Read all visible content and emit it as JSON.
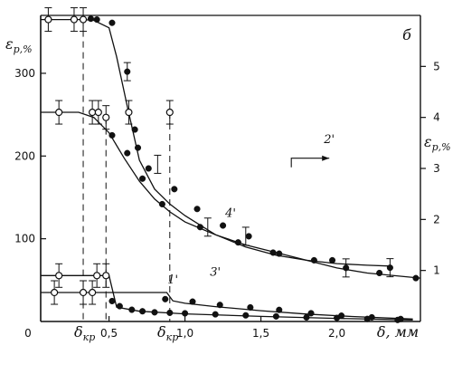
{
  "chart_data": {
    "type": "line",
    "panel_label": "б",
    "ylabel_left": "ε_p,%",
    "ylabel_right": "ε_p,%",
    "xlabel": "δ, мм",
    "delta_kr_label": "δ_кр",
    "x_ticks": [
      "0,5",
      "1,0",
      "1,5",
      "2,0"
    ],
    "y_left_ticks": [
      "100",
      "200",
      "300"
    ],
    "y_right_ticks": [
      "1",
      "2",
      "3",
      "4",
      "5"
    ],
    "origin_label": "0",
    "xlim": [
      0.05,
      2.55
    ],
    "ylim_left": [
      0,
      370
    ],
    "ylim_right": [
      0,
      6.0
    ],
    "series": [
      {
        "name": "1'",
        "axis": "right",
        "line": [
          [
            0.05,
            0.9
          ],
          [
            0.5,
            0.9
          ],
          [
            0.55,
            0.28
          ],
          [
            0.7,
            0.2
          ],
          [
            1.0,
            0.15
          ],
          [
            1.5,
            0.1
          ],
          [
            2.0,
            0.06
          ],
          [
            2.5,
            0.03
          ]
        ],
        "open": [
          [
            0.17,
            0.9
          ],
          [
            0.42,
            0.9
          ],
          [
            0.48,
            0.9
          ]
        ],
        "filled": [
          [
            0.52,
            0.4
          ],
          [
            0.57,
            0.3
          ],
          [
            0.65,
            0.23
          ],
          [
            0.72,
            0.2
          ],
          [
            0.8,
            0.18
          ],
          [
            0.9,
            0.17
          ],
          [
            1.0,
            0.16
          ],
          [
            1.2,
            0.14
          ],
          [
            1.4,
            0.12
          ],
          [
            1.6,
            0.1
          ],
          [
            1.8,
            0.08
          ],
          [
            2.0,
            0.07
          ],
          [
            2.2,
            0.05
          ],
          [
            2.4,
            0.03
          ]
        ]
      },
      {
        "name": "2'",
        "axis": "left",
        "line": [
          [
            0.05,
            365
          ],
          [
            0.33,
            365
          ],
          [
            0.4,
            364
          ],
          [
            0.5,
            355
          ],
          [
            0.55,
            320
          ],
          [
            0.62,
            260
          ],
          [
            0.7,
            195
          ],
          [
            0.8,
            160
          ],
          [
            0.9,
            142
          ],
          [
            1.0,
            128
          ],
          [
            1.2,
            105
          ],
          [
            1.4,
            90
          ],
          [
            1.6,
            80
          ],
          [
            1.8,
            74
          ],
          [
            2.0,
            70
          ],
          [
            2.2,
            68
          ],
          [
            2.35,
            67
          ]
        ],
        "open": [
          [
            0.1,
            365
          ],
          [
            0.27,
            365
          ],
          [
            0.33,
            365
          ]
        ],
        "filled": [
          [
            0.38,
            366
          ],
          [
            0.42,
            365
          ],
          [
            0.52,
            361
          ],
          [
            0.62,
            302
          ],
          [
            0.67,
            232
          ],
          [
            0.69,
            210
          ],
          [
            0.76,
            185
          ],
          [
            0.93,
            160
          ],
          [
            1.08,
            136
          ],
          [
            1.25,
            116
          ],
          [
            1.42,
            103
          ],
          [
            1.62,
            82
          ],
          [
            1.97,
            74
          ],
          [
            2.35,
            65
          ]
        ]
      },
      {
        "name": "3'",
        "axis": "left",
        "line": [
          [
            0.05,
            35
          ],
          [
            0.88,
            35
          ],
          [
            0.92,
            25
          ],
          [
            1.0,
            22
          ],
          [
            1.2,
            18
          ],
          [
            1.5,
            13
          ],
          [
            1.8,
            9
          ],
          [
            2.1,
            6
          ],
          [
            2.5,
            3
          ]
        ],
        "open": [
          [
            0.14,
            35
          ],
          [
            0.33,
            35
          ],
          [
            0.39,
            35
          ]
        ],
        "filled": [
          [
            0.87,
            27
          ],
          [
            1.05,
            24
          ],
          [
            1.23,
            20
          ],
          [
            1.43,
            17
          ],
          [
            1.62,
            14
          ],
          [
            1.83,
            10
          ],
          [
            2.03,
            7
          ],
          [
            2.23,
            5
          ],
          [
            2.42,
            3
          ]
        ]
      },
      {
        "name": "4'",
        "axis": "right",
        "line": [
          [
            0.05,
            4.1
          ],
          [
            0.3,
            4.1
          ],
          [
            0.4,
            4.0
          ],
          [
            0.5,
            3.7
          ],
          [
            0.6,
            3.2
          ],
          [
            0.7,
            2.75
          ],
          [
            0.8,
            2.4
          ],
          [
            0.9,
            2.15
          ],
          [
            1.0,
            1.95
          ],
          [
            1.2,
            1.7
          ],
          [
            1.4,
            1.5
          ],
          [
            1.6,
            1.35
          ],
          [
            1.8,
            1.2
          ],
          [
            2.0,
            1.05
          ],
          [
            2.2,
            0.95
          ],
          [
            2.55,
            0.85
          ]
        ],
        "open": [
          [
            0.17,
            4.1
          ],
          [
            0.39,
            4.1
          ],
          [
            0.43,
            4.1
          ],
          [
            0.48,
            4.0
          ],
          [
            0.63,
            4.1
          ],
          [
            0.9,
            4.1
          ]
        ],
        "filled": [
          [
            0.52,
            3.65
          ],
          [
            0.62,
            3.3
          ],
          [
            0.72,
            2.8
          ],
          [
            0.85,
            2.3
          ],
          [
            1.1,
            1.85
          ],
          [
            1.35,
            1.55
          ],
          [
            1.58,
            1.35
          ],
          [
            1.85,
            1.2
          ],
          [
            2.06,
            1.05
          ],
          [
            2.28,
            0.95
          ],
          [
            2.52,
            0.85
          ]
        ]
      }
    ]
  }
}
